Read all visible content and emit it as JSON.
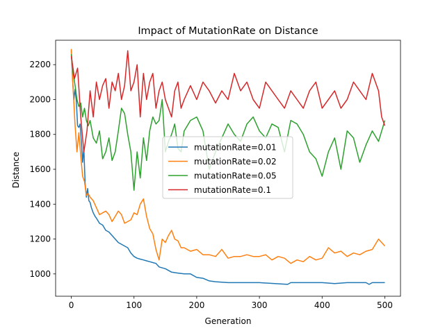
{
  "chart_data": {
    "type": "line",
    "title": "Impact of MutationRate on Distance",
    "xlabel": "Generation",
    "ylabel": "Distance",
    "xlim": [
      -25,
      525
    ],
    "ylim": [
      872,
      2340
    ],
    "xticks": [
      0,
      100,
      200,
      300,
      400,
      500
    ],
    "yticks": [
      1000,
      1200,
      1400,
      1600,
      1800,
      2000,
      2200
    ],
    "grid": false,
    "legend_position": "center",
    "series": [
      {
        "name": "mutationRate=0.01",
        "color": "#1f77b4",
        "x": [
          0,
          2,
          4,
          6,
          8,
          10,
          12,
          14,
          16,
          18,
          20,
          22,
          24,
          26,
          28,
          30,
          32,
          35,
          38,
          40,
          45,
          50,
          55,
          60,
          65,
          70,
          75,
          80,
          85,
          90,
          95,
          100,
          105,
          110,
          115,
          120,
          125,
          130,
          135,
          140,
          150,
          160,
          170,
          180,
          190,
          200,
          210,
          220,
          230,
          250,
          300,
          345,
          350,
          400,
          420,
          440,
          470,
          475,
          480,
          500
        ],
        "y": [
          2280,
          2120,
          2000,
          2060,
          1990,
          1850,
          1840,
          1860,
          1760,
          1640,
          1720,
          1520,
          1440,
          1490,
          1420,
          1410,
          1380,
          1350,
          1330,
          1320,
          1290,
          1280,
          1250,
          1240,
          1220,
          1200,
          1180,
          1170,
          1160,
          1150,
          1120,
          1100,
          1090,
          1085,
          1080,
          1075,
          1070,
          1065,
          1060,
          1040,
          1030,
          1010,
          1005,
          1000,
          1000,
          980,
          975,
          960,
          955,
          950,
          950,
          940,
          950,
          950,
          945,
          950,
          950,
          940,
          950,
          950
        ]
      },
      {
        "name": "mutationRate=0.02",
        "color": "#ff7f0e",
        "x": [
          0,
          3,
          6,
          9,
          12,
          15,
          18,
          21,
          24,
          27,
          30,
          35,
          40,
          45,
          50,
          55,
          60,
          65,
          70,
          75,
          80,
          85,
          90,
          95,
          100,
          105,
          110,
          115,
          120,
          125,
          130,
          135,
          140,
          145,
          150,
          155,
          160,
          165,
          170,
          175,
          180,
          190,
          200,
          210,
          220,
          230,
          240,
          250,
          260,
          270,
          280,
          290,
          300,
          310,
          320,
          330,
          340,
          350,
          360,
          370,
          380,
          390,
          400,
          410,
          420,
          430,
          440,
          450,
          460,
          470,
          480,
          490,
          500
        ],
        "y": [
          2290,
          2050,
          1850,
          1700,
          1810,
          1680,
          1560,
          1530,
          1450,
          1460,
          1440,
          1420,
          1380,
          1340,
          1350,
          1360,
          1340,
          1300,
          1330,
          1360,
          1340,
          1290,
          1300,
          1310,
          1350,
          1340,
          1400,
          1430,
          1330,
          1260,
          1230,
          1140,
          1080,
          1200,
          1180,
          1220,
          1250,
          1200,
          1190,
          1150,
          1150,
          1130,
          1140,
          1110,
          1110,
          1100,
          1140,
          1090,
          1100,
          1100,
          1110,
          1100,
          1100,
          1110,
          1080,
          1100,
          1090,
          1060,
          1080,
          1070,
          1100,
          1080,
          1090,
          1150,
          1120,
          1130,
          1100,
          1120,
          1110,
          1130,
          1140,
          1200,
          1160
        ]
      },
      {
        "name": "mutationRate=0.05",
        "color": "#2ca02c",
        "x": [
          0,
          3,
          6,
          9,
          12,
          15,
          18,
          21,
          24,
          27,
          30,
          35,
          40,
          45,
          50,
          55,
          60,
          65,
          70,
          75,
          80,
          85,
          90,
          95,
          100,
          105,
          110,
          115,
          120,
          125,
          130,
          135,
          140,
          145,
          150,
          155,
          160,
          165,
          170,
          175,
          180,
          190,
          200,
          210,
          220,
          230,
          240,
          250,
          260,
          270,
          280,
          290,
          300,
          310,
          320,
          330,
          340,
          350,
          360,
          370,
          380,
          390,
          400,
          410,
          420,
          430,
          440,
          450,
          460,
          470,
          480,
          490,
          500
        ],
        "y": [
          2260,
          2150,
          2080,
          2000,
          1960,
          1980,
          1900,
          1950,
          1880,
          1850,
          1880,
          1780,
          1750,
          1820,
          1660,
          1700,
          1780,
          1650,
          1700,
          1820,
          1950,
          1920,
          1800,
          1700,
          1480,
          1700,
          1550,
          1780,
          1650,
          1820,
          1900,
          1860,
          1880,
          2000,
          1700,
          1760,
          1800,
          1860,
          1720,
          1700,
          1820,
          1880,
          1900,
          1820,
          1600,
          1700,
          1780,
          1860,
          1800,
          1760,
          1860,
          1900,
          1820,
          1780,
          1860,
          1840,
          1700,
          1880,
          1860,
          1800,
          1700,
          1660,
          1560,
          1700,
          1780,
          1600,
          1820,
          1780,
          1640,
          1740,
          1820,
          1760,
          1880
        ]
      },
      {
        "name": "mutationRate=0.1",
        "color": "#d62728",
        "x": [
          0,
          5,
          10,
          15,
          20,
          25,
          30,
          35,
          40,
          45,
          50,
          55,
          60,
          65,
          70,
          75,
          80,
          85,
          90,
          95,
          100,
          105,
          110,
          115,
          120,
          125,
          130,
          135,
          140,
          145,
          150,
          155,
          160,
          165,
          170,
          175,
          180,
          190,
          200,
          210,
          220,
          230,
          240,
          250,
          260,
          270,
          280,
          290,
          300,
          310,
          320,
          330,
          340,
          350,
          360,
          370,
          380,
          390,
          400,
          410,
          420,
          430,
          440,
          450,
          460,
          470,
          480,
          490,
          495,
          500
        ],
        "y": [
          2250,
          2120,
          2180,
          1900,
          1700,
          1820,
          2050,
          1900,
          2100,
          2000,
          2080,
          2120,
          1950,
          2100,
          2050,
          2150,
          2000,
          2080,
          2280,
          2050,
          2100,
          2200,
          1900,
          2150,
          2000,
          2100,
          2150,
          1950,
          2050,
          2100,
          2000,
          1950,
          1900,
          2050,
          2100,
          1950,
          2000,
          2080,
          2000,
          2100,
          2050,
          1980,
          2050,
          2000,
          2150,
          2050,
          2100,
          2000,
          1950,
          2100,
          2050,
          2000,
          1950,
          2050,
          2000,
          1950,
          2050,
          2100,
          1950,
          2000,
          2050,
          1950,
          2000,
          2100,
          2050,
          2000,
          2150,
          2050,
          1900,
          1850
        ]
      }
    ]
  }
}
